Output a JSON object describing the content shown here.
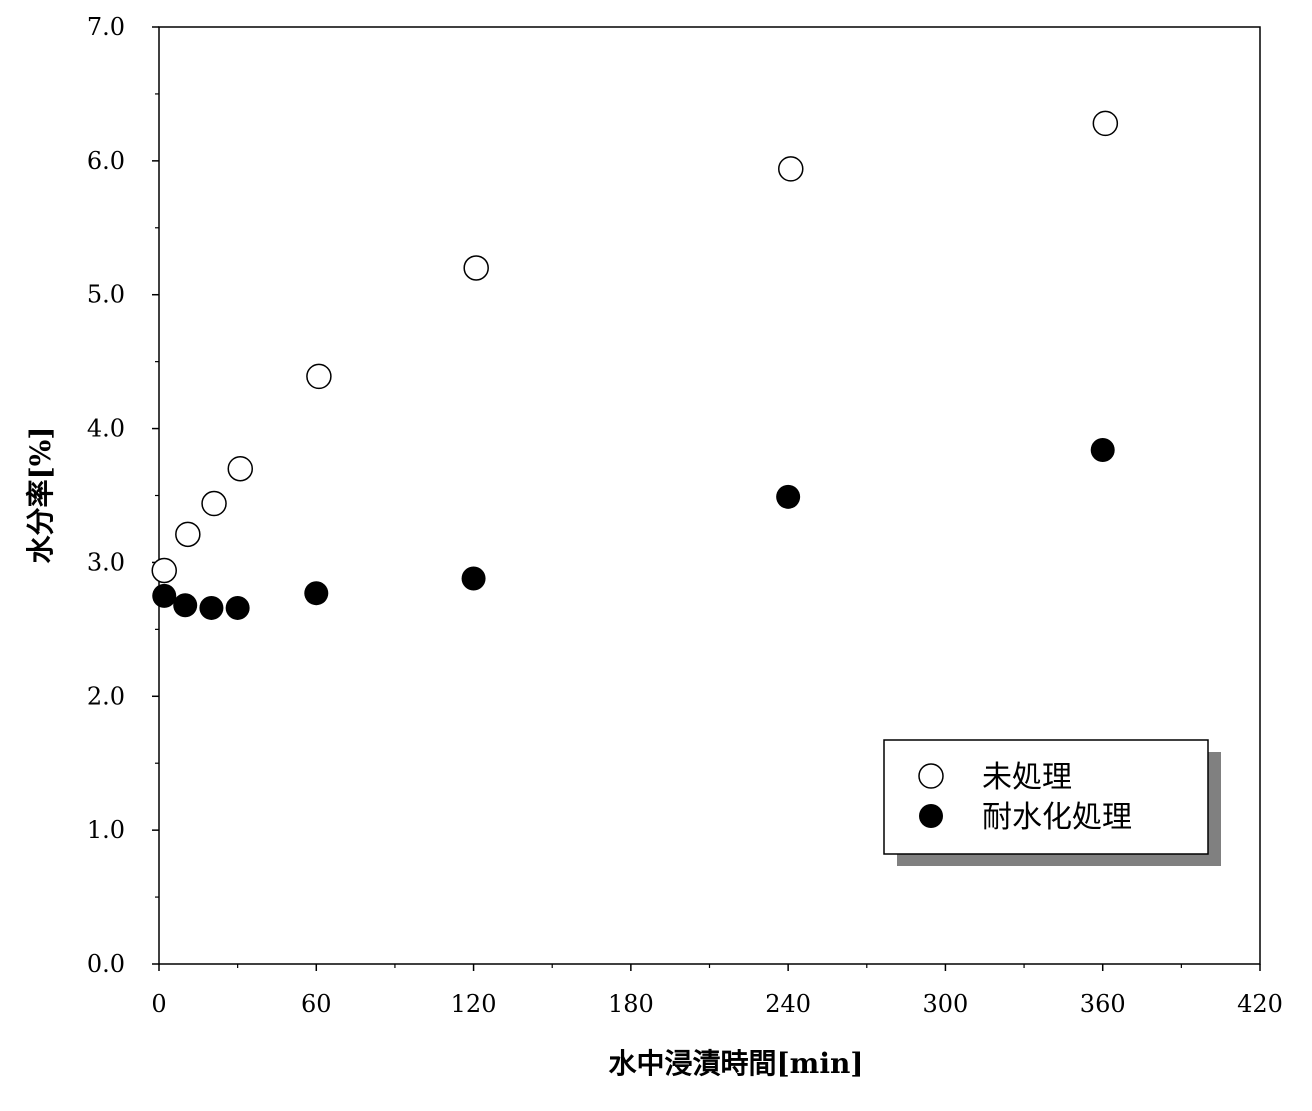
{
  "chart_data": {
    "type": "scatter",
    "xlabel": "水中浸漬時間[min]",
    "ylabel": "水分率[%]",
    "xlim": [
      0,
      420
    ],
    "ylim": [
      0,
      7
    ],
    "x_ticks": [
      "0",
      "60",
      "120",
      "180",
      "240",
      "300",
      "360",
      "420"
    ],
    "y_ticks": [
      "0.0",
      "1.0",
      "2.0",
      "3.0",
      "4.0",
      "5.0",
      "6.0",
      "7.0"
    ],
    "x_tick_values": [
      0,
      60,
      120,
      180,
      240,
      300,
      360,
      420
    ],
    "y_tick_values": [
      0,
      1,
      2,
      3,
      4,
      5,
      6,
      7
    ],
    "grid": false,
    "legend_position": "bottom-right",
    "series": [
      {
        "name": "未処理",
        "marker": "open-circle",
        "points": [
          {
            "x": 2,
            "y": 2.94
          },
          {
            "x": 11,
            "y": 3.21
          },
          {
            "x": 21,
            "y": 3.44
          },
          {
            "x": 31,
            "y": 3.7
          },
          {
            "x": 61,
            "y": 4.39
          },
          {
            "x": 121,
            "y": 5.2
          },
          {
            "x": 241,
            "y": 5.94
          },
          {
            "x": 361,
            "y": 6.28
          }
        ]
      },
      {
        "name": "耐水化処理",
        "marker": "filled-circle",
        "points": [
          {
            "x": 2,
            "y": 2.75
          },
          {
            "x": 10,
            "y": 2.68
          },
          {
            "x": 20,
            "y": 2.66
          },
          {
            "x": 30,
            "y": 2.66
          },
          {
            "x": 60,
            "y": 2.77
          },
          {
            "x": 120,
            "y": 2.88
          },
          {
            "x": 240,
            "y": 3.49
          },
          {
            "x": 360,
            "y": 3.84
          }
        ]
      }
    ]
  }
}
